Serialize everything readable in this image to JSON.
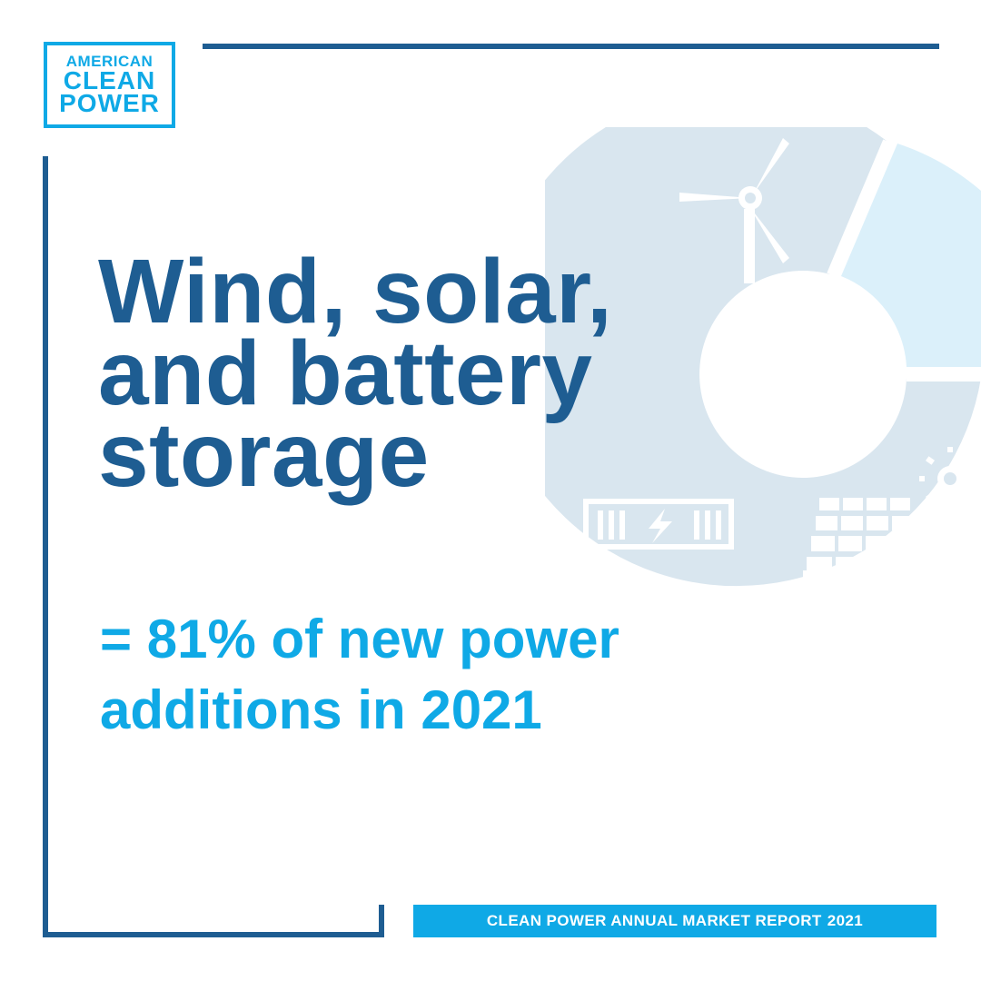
{
  "logo": {
    "line1": "AMERICAN",
    "line2": "CLEAN",
    "line3": "POWER"
  },
  "headline": {
    "line1": "Wind, solar,",
    "line2": "and battery",
    "line3": "storage"
  },
  "subline": {
    "line1": "= 81% of new power",
    "line2": "additions in 2021"
  },
  "footer": {
    "label": "CLEAN POWER ANNUAL MARKET REPORT",
    "year": "2021"
  },
  "colors": {
    "primary_dark_blue": "#1e5d92",
    "accent_light_blue": "#0fa9e6",
    "donut_gray_blue": "#d9e6ef",
    "donut_light_segment": "#dbf0fa"
  },
  "icons": [
    "wind-turbine-icon",
    "battery-icon",
    "solar-panel-icon",
    "sun-icon"
  ]
}
